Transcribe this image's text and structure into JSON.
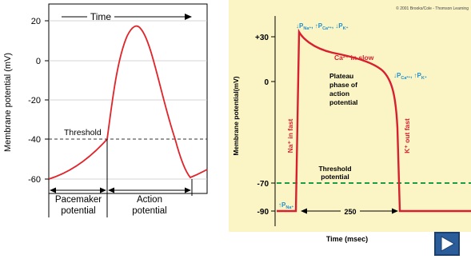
{
  "left_chart": {
    "ylabel": "Membrane potential (mV)",
    "yticks": [
      "20",
      "0",
      "-20",
      "-40",
      "-60"
    ],
    "time_label": "Time",
    "threshold_label": "Threshold",
    "pacemaker_label_1": "Pacemaker",
    "pacemaker_label_2": "potential",
    "action_label_1": "Action",
    "action_label_2": "potential",
    "curve_color": "#e0242a"
  },
  "right_chart": {
    "copyright": "© 2001 Brooks/Cole - Thomson Learning",
    "ylabel": "Membrane potential(mV)",
    "xlabel": "Time (msec)",
    "yticks": [
      "+30",
      "0",
      "-70",
      "-90"
    ],
    "top_annotation_parts": [
      "↓P",
      "Na⁺",
      ", ↑P",
      "Ca²⁺",
      ", ↓P",
      "K⁺"
    ],
    "ca_in_slow": "Ca²⁺ in slow",
    "plateau_1": "Plateau",
    "plateau_2": "phase of",
    "plateau_3": "action",
    "plateau_4": "potential",
    "right_annotation_parts": [
      "↓P",
      "Ca²⁺",
      ", ↑P",
      "K⁺"
    ],
    "na_in_fast": "Na⁺ in fast",
    "k_out_fast": "K⁺ out fast",
    "threshold_1": "Threshold",
    "threshold_2": "potential",
    "duration": "250",
    "bottom_left_parts": [
      "↑P",
      "Na⁺"
    ],
    "background_color": "#fbf5c6",
    "curve_color": "#d81f2f",
    "threshold_color": "#1f9a48",
    "annotation_color": "#1a8fd0"
  },
  "nav": {
    "next_icon": "play-triangle-icon"
  }
}
